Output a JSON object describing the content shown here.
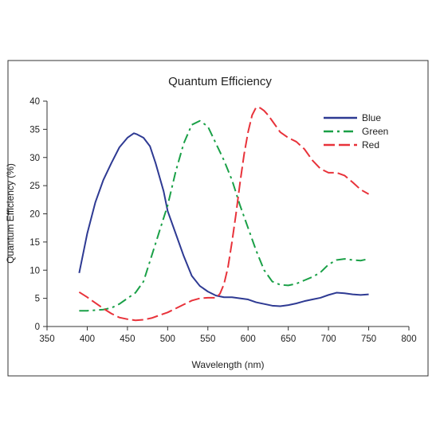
{
  "chart_data": {
    "type": "line",
    "title": "Quantum Efficiency",
    "xlabel": "Wavelength (nm)",
    "ylabel": "Quantum Efficiency (%)",
    "xlim": [
      350,
      800
    ],
    "ylim": [
      0,
      40
    ],
    "xticks": [
      350,
      400,
      450,
      500,
      550,
      600,
      650,
      700,
      750,
      800
    ],
    "yticks": [
      0,
      5,
      10,
      15,
      20,
      25,
      30,
      35,
      40
    ],
    "grid": false,
    "legend_position": "top-right",
    "series": [
      {
        "name": "Blue",
        "color": "#2e3a93",
        "dash": "solid",
        "x": [
          390,
          395,
          400,
          410,
          420,
          430,
          440,
          450,
          458,
          462,
          470,
          478,
          485,
          490,
          495,
          500,
          510,
          520,
          530,
          540,
          550,
          560,
          570,
          580,
          590,
          600,
          610,
          620,
          630,
          640,
          650,
          660,
          670,
          680,
          690,
          700,
          710,
          720,
          730,
          740,
          750
        ],
        "y": [
          9.5,
          13.0,
          16.5,
          22.0,
          26.0,
          29.0,
          31.8,
          33.5,
          34.3,
          34.1,
          33.5,
          32.0,
          29.0,
          26.5,
          24.0,
          20.5,
          16.5,
          12.5,
          9.0,
          7.2,
          6.2,
          5.5,
          5.2,
          5.2,
          5.0,
          4.8,
          4.3,
          4.0,
          3.7,
          3.6,
          3.8,
          4.1,
          4.5,
          4.8,
          5.1,
          5.6,
          6.0,
          5.9,
          5.7,
          5.6,
          5.7
        ]
      },
      {
        "name": "Green",
        "color": "#1aa047",
        "dash": "dashdot",
        "x": [
          390,
          400,
          410,
          420,
          430,
          440,
          450,
          460,
          470,
          480,
          490,
          500,
          510,
          520,
          530,
          540,
          550,
          560,
          570,
          580,
          590,
          600,
          610,
          620,
          630,
          640,
          650,
          660,
          670,
          680,
          690,
          700,
          710,
          720,
          730,
          740,
          750
        ],
        "y": [
          2.8,
          2.8,
          2.9,
          3.0,
          3.3,
          4.0,
          5.0,
          6.0,
          8.0,
          12.5,
          17.0,
          21.5,
          27.5,
          32.5,
          35.8,
          36.5,
          35.5,
          32.5,
          29.5,
          26.0,
          21.5,
          17.5,
          13.5,
          10.0,
          8.0,
          7.4,
          7.3,
          7.6,
          8.2,
          8.8,
          9.6,
          11.0,
          11.8,
          12.0,
          11.8,
          11.7,
          12.0
        ]
      },
      {
        "name": "Red",
        "color": "#e8323a",
        "dash": "dashed",
        "x": [
          390,
          400,
          410,
          420,
          430,
          440,
          450,
          460,
          470,
          480,
          490,
          500,
          510,
          520,
          530,
          540,
          550,
          560,
          565,
          570,
          575,
          580,
          585,
          590,
          595,
          600,
          605,
          610,
          615,
          620,
          625,
          630,
          640,
          650,
          660,
          670,
          680,
          690,
          700,
          710,
          720,
          730,
          740,
          750
        ],
        "y": [
          6.1,
          5.2,
          4.2,
          3.2,
          2.3,
          1.6,
          1.3,
          1.1,
          1.2,
          1.5,
          2.0,
          2.5,
          3.2,
          3.9,
          4.6,
          5.0,
          5.1,
          5.1,
          5.8,
          7.5,
          10.5,
          15.0,
          20.0,
          25.5,
          30.5,
          34.5,
          37.5,
          38.9,
          38.8,
          38.3,
          37.5,
          36.5,
          34.5,
          33.5,
          32.8,
          31.5,
          29.5,
          28.0,
          27.3,
          27.3,
          26.8,
          25.6,
          24.3,
          23.5
        ]
      }
    ]
  }
}
